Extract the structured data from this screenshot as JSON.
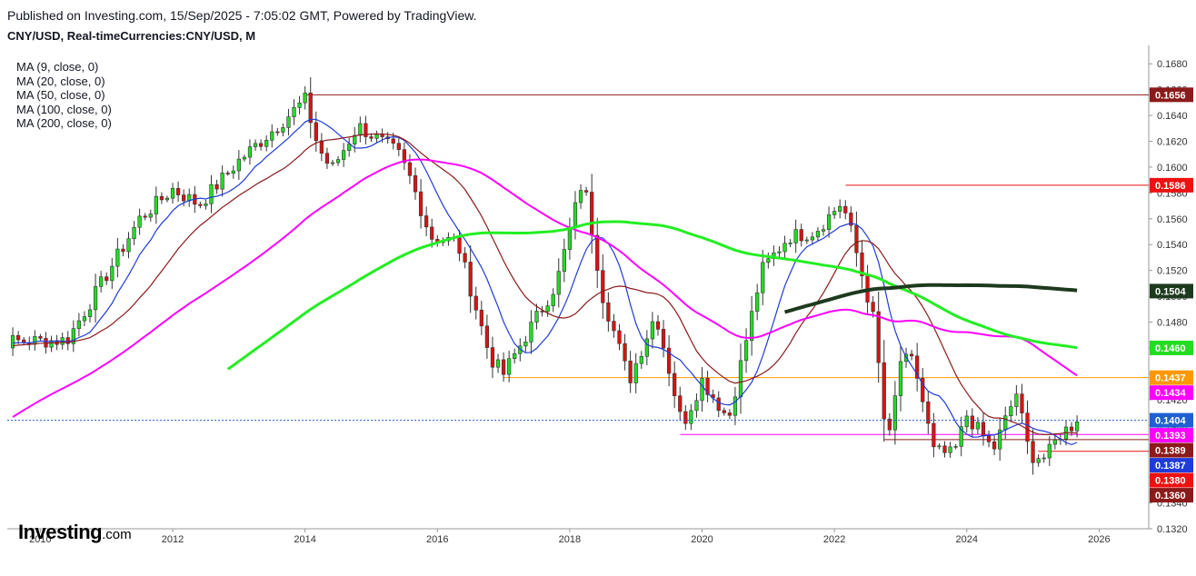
{
  "header": {
    "published": "Published on Investing.com, 15/Sep/2025 - 7:05:02 GMT, Powered by TradingView.",
    "symbol": "CNY/USD, Real-timeCurrencies:CNY/USD, M"
  },
  "indicators": [
    {
      "label": "MA (9, close, 0)",
      "color": "#1f3bdb"
    },
    {
      "label": "MA (20, close, 0)",
      "color": "#8b1a1a"
    },
    {
      "label": "MA (50, close, 0)",
      "color": "#ff00ff"
    },
    {
      "label": "MA (100, close, 0)",
      "color": "#22ee22"
    },
    {
      "label": "MA (200, close, 0)",
      "color": "#1e3a1e"
    }
  ],
  "brand": {
    "name": "Investing",
    "suffix": ".com"
  },
  "colors": {
    "up": "#22dd22",
    "down": "#dd1111",
    "last_price": "#1f5fd1"
  },
  "chart_data": {
    "type": "candlestick",
    "interval": "monthly",
    "ylim": [
      0.132,
      0.169
    ],
    "y_ticks": [
      "0.1680",
      "0.1660",
      "0.1640",
      "0.1620",
      "0.1600",
      "0.1580",
      "0.1560",
      "0.1540",
      "0.1520",
      "0.1500",
      "0.1480",
      "0.1460",
      "0.1440",
      "0.1420",
      "0.1400",
      "0.1380",
      "0.1360",
      "0.1340",
      "0.1320"
    ],
    "x_ticks": [
      {
        "label": "2010",
        "year": 2010
      },
      {
        "label": "2012",
        "year": 2012
      },
      {
        "label": "2014",
        "year": 2014
      },
      {
        "label": "2016",
        "year": 2016
      },
      {
        "label": "2018",
        "year": 2018
      },
      {
        "label": "2020",
        "year": 2020
      },
      {
        "label": "2022",
        "year": 2022
      },
      {
        "label": "2024",
        "year": 2024
      },
      {
        "label": "2026",
        "year": 2026
      }
    ],
    "price_tags": [
      {
        "label": "0.1656",
        "value": 0.1656,
        "bg": "#8b1a1a"
      },
      {
        "label": "0.1586",
        "value": 0.1586,
        "bg": "#ee1111"
      },
      {
        "label": "0.1504",
        "value": 0.1504,
        "bg": "#1e3a1e"
      },
      {
        "label": "0.1460",
        "value": 0.146,
        "bg": "#22dd22"
      },
      {
        "label": "0.1437",
        "value": 0.1437,
        "bg": "#ff9800"
      },
      {
        "label": "0.1434",
        "value": 0.1434,
        "bg": "#ff00ff"
      },
      {
        "label": "0.1404",
        "value": 0.1404,
        "bg": "#1f5fd1"
      },
      {
        "label": "0.1393",
        "value": 0.1393,
        "bg": "#ff00ff"
      },
      {
        "label": "0.1389",
        "value": 0.1389,
        "bg": "#8b1a1a"
      },
      {
        "label": "0.1387",
        "value": 0.1387,
        "bg": "#1f3bdb"
      },
      {
        "label": "0.1380",
        "value": 0.138,
        "bg": "#ee1111"
      },
      {
        "label": "0.1360",
        "value": 0.136,
        "bg": "#8b1a1a"
      }
    ],
    "horizontal_lines": [
      {
        "value": 0.1656,
        "from": 2014.0,
        "color": "#8b1a1a"
      },
      {
        "value": 0.1586,
        "from": 2022.17,
        "color": "#ee1111"
      },
      {
        "value": 0.1437,
        "from": 2017.0,
        "color": "#ff9800"
      },
      {
        "value": 0.1393,
        "from": 2019.67,
        "color": "#ff00ff"
      },
      {
        "value": 0.1389,
        "from": 2022.75,
        "color": "#8b1a1a"
      },
      {
        "value": 0.138,
        "from": 2025.08,
        "color": "#ee1111"
      }
    ],
    "last_price": 0.1404,
    "anchors": [
      {
        "year": 2009.0,
        "close": 0.14645
      },
      {
        "year": 2010.4,
        "close": 0.1466
      },
      {
        "year": 2010.75,
        "close": 0.1495
      },
      {
        "year": 2011.5,
        "close": 0.156
      },
      {
        "year": 2012.0,
        "close": 0.1583
      },
      {
        "year": 2012.4,
        "close": 0.1571
      },
      {
        "year": 2013.0,
        "close": 0.1605
      },
      {
        "year": 2013.5,
        "close": 0.1628
      },
      {
        "year": 2014.0,
        "close": 0.1652
      },
      {
        "year": 2014.2,
        "close": 0.1615
      },
      {
        "year": 2014.4,
        "close": 0.1598
      },
      {
        "year": 2014.8,
        "close": 0.1632
      },
      {
        "year": 2015.4,
        "close": 0.1611
      },
      {
        "year": 2015.6,
        "close": 0.159
      },
      {
        "year": 2015.9,
        "close": 0.1546
      },
      {
        "year": 2016.3,
        "close": 0.1542
      },
      {
        "year": 2016.8,
        "close": 0.1452
      },
      {
        "year": 2017.0,
        "close": 0.144
      },
      {
        "year": 2017.4,
        "close": 0.1475
      },
      {
        "year": 2017.8,
        "close": 0.151
      },
      {
        "year": 2018.2,
        "close": 0.1592
      },
      {
        "year": 2018.5,
        "close": 0.15
      },
      {
        "year": 2018.9,
        "close": 0.1435
      },
      {
        "year": 2019.3,
        "close": 0.1487
      },
      {
        "year": 2019.7,
        "close": 0.14
      },
      {
        "year": 2020.0,
        "close": 0.1435
      },
      {
        "year": 2020.4,
        "close": 0.1405
      },
      {
        "year": 2020.9,
        "close": 0.152
      },
      {
        "year": 2021.3,
        "close": 0.1546
      },
      {
        "year": 2021.7,
        "close": 0.155
      },
      {
        "year": 2022.1,
        "close": 0.1572
      },
      {
        "year": 2022.2,
        "close": 0.156
      },
      {
        "year": 2022.6,
        "close": 0.148
      },
      {
        "year": 2022.8,
        "close": 0.138
      },
      {
        "year": 2023.0,
        "close": 0.145
      },
      {
        "year": 2023.2,
        "close": 0.1449
      },
      {
        "year": 2023.5,
        "close": 0.138
      },
      {
        "year": 2023.8,
        "close": 0.1377
      },
      {
        "year": 2024.0,
        "close": 0.1408
      },
      {
        "year": 2024.4,
        "close": 0.1381
      },
      {
        "year": 2024.75,
        "close": 0.1425
      },
      {
        "year": 2024.95,
        "close": 0.1377
      },
      {
        "year": 2025.2,
        "close": 0.1375
      },
      {
        "year": 2025.4,
        "close": 0.1393
      },
      {
        "year": 2025.7,
        "close": 0.1404
      }
    ],
    "moving_averages": [
      {
        "label": "MA (9, close, 0)",
        "period": 9,
        "color": "#1f3bdb"
      },
      {
        "label": "MA (20, close, 0)",
        "period": 20,
        "color": "#8b1a1a"
      },
      {
        "label": "MA (50, close, 0)",
        "period": 50,
        "color": "#ff00ff"
      },
      {
        "label": "MA (100, close, 0)",
        "period": 100,
        "color": "#22ee22"
      },
      {
        "label": "MA (200, close, 0)",
        "period": 200,
        "color": "#1e3a1e"
      }
    ]
  }
}
